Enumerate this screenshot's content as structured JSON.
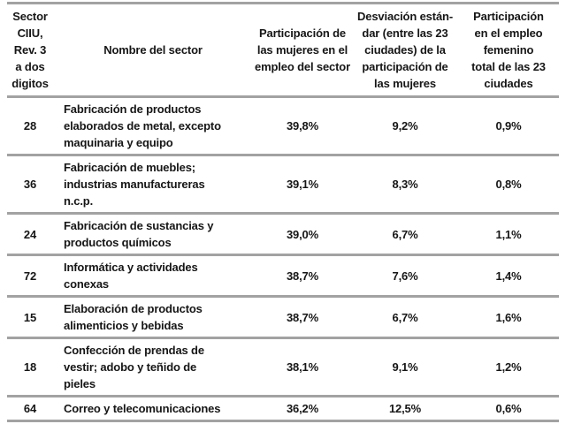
{
  "table": {
    "columns": [
      {
        "id": "code",
        "header": "Sector\nCIIU,\nRev. 3\na dos\ndigitos"
      },
      {
        "id": "name",
        "header": "Nombre del sector"
      },
      {
        "id": "participation",
        "header": "Participación de\nlas mujeres en el\nempleo del sector"
      },
      {
        "id": "stddev",
        "header": "Desviación están-\ndar (entre las 23\nciudades) de la\nparticipación de\nlas mujeres"
      },
      {
        "id": "female_total",
        "header": "Participación\nen el empleo\nfemenino\ntotal de las 23\nciudades"
      }
    ],
    "rows": [
      {
        "code": "28",
        "name": "Fabricación de productos\nelaborados de metal, excepto\nmaquinaria y equipo",
        "participation": "39,8%",
        "stddev": "9,2%",
        "female_total": "0,9%"
      },
      {
        "code": "36",
        "name": "Fabricación de muebles;\nindustrias manufactureras\nn.c.p.",
        "participation": "39,1%",
        "stddev": "8,3%",
        "female_total": "0,8%"
      },
      {
        "code": "24",
        "name": "Fabricación de sustancias y\nproductos químicos",
        "participation": "39,0%",
        "stddev": "6,7%",
        "female_total": "1,1%"
      },
      {
        "code": "72",
        "name": "Informática y actividades\nconexas",
        "participation": "38,7%",
        "stddev": "7,6%",
        "female_total": "1,4%"
      },
      {
        "code": "15",
        "name": "Elaboración de productos\nalimenticios y bebidas",
        "participation": "38,7%",
        "stddev": "6,7%",
        "female_total": "1,6%"
      },
      {
        "code": "18",
        "name": "Confección de prendas de\nvestir; adobo y teñido de\npieles",
        "participation": "38,1%",
        "stddev": "9,1%",
        "female_total": "1,2%"
      },
      {
        "code": "64",
        "name": "Correo y telecomunicaciones",
        "participation": "36,2%",
        "stddev": "12,5%",
        "female_total": "0,6%"
      }
    ],
    "colors": {
      "text": "#161616",
      "border": "#a2a2a2",
      "background": "#ffffff"
    }
  }
}
